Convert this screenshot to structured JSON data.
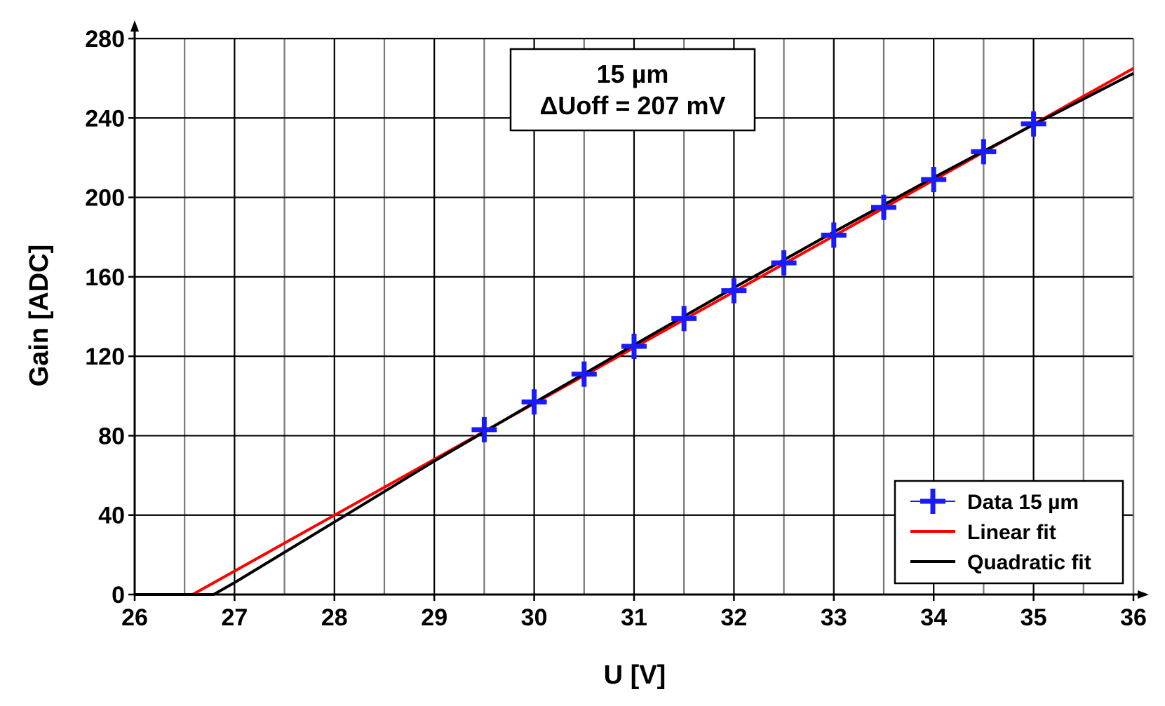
{
  "chart_data": {
    "type": "line",
    "xlabel": "U [V]",
    "ylabel": "Gain [ADC]",
    "xlim": [
      26,
      36
    ],
    "ylim": [
      0,
      280
    ],
    "x_ticks": [
      26,
      27,
      28,
      29,
      30,
      31,
      32,
      33,
      34,
      35,
      36
    ],
    "y_ticks": [
      0,
      40,
      80,
      120,
      160,
      200,
      240,
      280
    ],
    "grid": true,
    "annotation": [
      "15 µm",
      "ΔUoff = 207 mV"
    ],
    "legend_position": "bottom-right",
    "series": [
      {
        "name": "Data 15 µm",
        "kind": "markers",
        "color": "#1a1aff",
        "x": [
          29.5,
          30.0,
          30.5,
          31.0,
          31.5,
          32.0,
          32.5,
          33.0,
          33.5,
          34.0,
          34.5,
          35.0
        ],
        "y": [
          83,
          97,
          111,
          125,
          139,
          153,
          167,
          181,
          195,
          209,
          223,
          237
        ]
      },
      {
        "name": "Linear fit",
        "kind": "line",
        "color": "#ff0000",
        "x": [
          26.0,
          26.58,
          36.0
        ],
        "y": [
          0,
          0,
          265
        ]
      },
      {
        "name": "Quadratic fit",
        "kind": "line",
        "color": "#000000",
        "x": [
          26.0,
          26.79,
          27.0,
          28.0,
          29.0,
          30.0,
          31.0,
          32.0,
          33.0,
          34.0,
          35.0,
          36.0
        ],
        "y": [
          0,
          0,
          6.0,
          36.5,
          67.2,
          96.6,
          125.7,
          154.5,
          182.6,
          210.0,
          236.6,
          262.5
        ]
      }
    ]
  }
}
